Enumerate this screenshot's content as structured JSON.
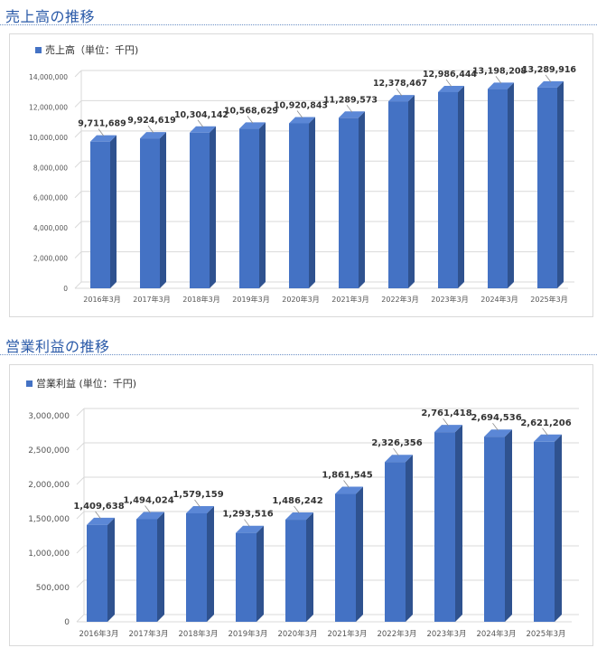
{
  "sections": [
    {
      "title": "売上高の推移"
    },
    {
      "title": "営業利益の推移"
    }
  ],
  "colors": {
    "bar_front": "#4472c4",
    "bar_side": "#2f528f",
    "bar_top": "#5b87d6",
    "title": "#2a5aa8",
    "grid": "#d9d9d9"
  },
  "chart_data": [
    {
      "type": "bar",
      "title": "",
      "legend": "売上高（単位：千円)",
      "legend_position": "top-left",
      "categories": [
        "2016年3月",
        "2017年3月",
        "2018年3月",
        "2019年3月",
        "2020年3月",
        "2021年3月",
        "2022年3月",
        "2023年3月",
        "2024年3月",
        "2025年3月"
      ],
      "values": [
        9711689,
        9924619,
        10304142,
        10568629,
        10920843,
        11289573,
        12378467,
        12986444,
        13198208,
        13289916
      ],
      "data_labels": [
        "9,711,689",
        "9,924,619",
        "10,304,142",
        "10,568,629",
        "10,920,843",
        "11,289,573",
        "12,378,467",
        "12,986,444",
        "13,198,208",
        "13,289,916"
      ],
      "yticks": [
        0,
        2000000,
        4000000,
        6000000,
        8000000,
        10000000,
        12000000,
        14000000
      ],
      "ytick_labels": [
        "0",
        "2,000,000",
        "4,000,000",
        "6,000,000",
        "8,000,000",
        "10,000,000",
        "12,000,000",
        "14,000,000"
      ],
      "ylim": [
        0,
        14000000
      ],
      "grid": true
    },
    {
      "type": "bar",
      "title": "",
      "legend": "営業利益 (単位：千円)",
      "legend_position": "top-left",
      "categories": [
        "2016年3月",
        "2017年3月",
        "2018年3月",
        "2019年3月",
        "2020年3月",
        "2021年3月",
        "2022年3月",
        "2023年3月",
        "2024年3月",
        "2025年3月"
      ],
      "values": [
        1409638,
        1494024,
        1579159,
        1293516,
        1486242,
        1861545,
        2326356,
        2761418,
        2694536,
        2621206
      ],
      "data_labels": [
        "1,409,638",
        "1,494,024",
        "1,579,159",
        "1,293,516",
        "1,486,242",
        "1,861,545",
        "2,326,356",
        "2,761,418",
        "2,694,536",
        "2,621,206"
      ],
      "yticks": [
        0,
        500000,
        1000000,
        1500000,
        2000000,
        2500000,
        3000000
      ],
      "ytick_labels": [
        "0",
        "500,000",
        "1,000,000",
        "1,500,000",
        "2,000,000",
        "2,500,000",
        "3,000,000"
      ],
      "ylim": [
        0,
        3000000
      ],
      "grid": true
    }
  ]
}
